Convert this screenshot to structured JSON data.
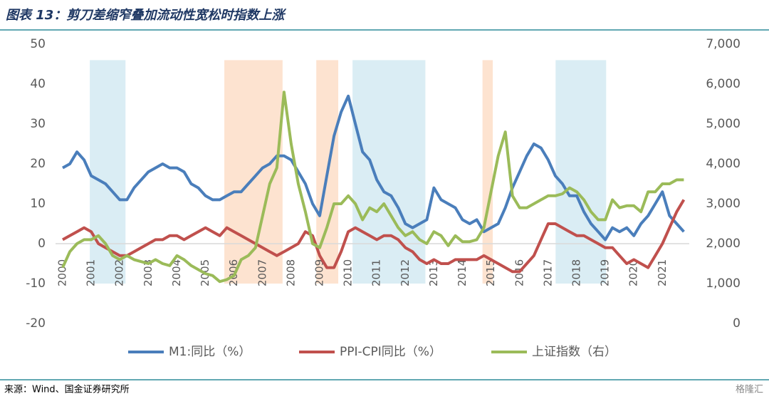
{
  "header": {
    "title": "图表 13：剪刀差缩窄叠加流动性宽松时指数上涨"
  },
  "footer": {
    "source": "来源：Wind、国金证券研究所",
    "watermark": "格隆汇"
  },
  "chart_data": {
    "type": "line",
    "x": [
      2000,
      2000.25,
      2000.5,
      2000.75,
      2001,
      2001.25,
      2001.5,
      2001.75,
      2002,
      2002.25,
      2002.5,
      2002.75,
      2003,
      2003.25,
      2003.5,
      2003.75,
      2004,
      2004.25,
      2004.5,
      2004.75,
      2005,
      2005.25,
      2005.5,
      2005.75,
      2006,
      2006.25,
      2006.5,
      2006.75,
      2007,
      2007.25,
      2007.5,
      2007.75,
      2008,
      2008.25,
      2008.5,
      2008.75,
      2009,
      2009.25,
      2009.5,
      2009.75,
      2010,
      2010.25,
      2010.5,
      2010.75,
      2011,
      2011.25,
      2011.5,
      2011.75,
      2012,
      2012.25,
      2012.5,
      2012.75,
      2013,
      2013.25,
      2013.5,
      2013.75,
      2014,
      2014.25,
      2014.5,
      2014.75,
      2015,
      2015.25,
      2015.5,
      2015.75,
      2016,
      2016.25,
      2016.5,
      2016.75,
      2017,
      2017.25,
      2017.5,
      2017.75,
      2018,
      2018.25,
      2018.5,
      2018.75,
      2019,
      2019.25,
      2019.5,
      2019.75,
      2020,
      2020.25,
      2020.5,
      2020.75,
      2021,
      2021.25,
      2021.5,
      2021.75
    ],
    "series": [
      {
        "name": "M1:同比（%）",
        "color": "#4a7ebb",
        "values": [
          19,
          20,
          23,
          21,
          17,
          16,
          15,
          13,
          11,
          11,
          14,
          16,
          18,
          19,
          20,
          19,
          19,
          18,
          15,
          14,
          12,
          11,
          11,
          12,
          13,
          13,
          15,
          17,
          19,
          20,
          22,
          22,
          21,
          18,
          15,
          10,
          7,
          17,
          27,
          33,
          37,
          30,
          23,
          21,
          16,
          13,
          12,
          9,
          5,
          4,
          5,
          6,
          14,
          11,
          10,
          9,
          6,
          5,
          6,
          3,
          4,
          5,
          9,
          14,
          18,
          22,
          25,
          24,
          21,
          17,
          15,
          12,
          12,
          8,
          5,
          3,
          1,
          4,
          3,
          4,
          2,
          5,
          7,
          10,
          13,
          7,
          5,
          3
        ]
      },
      {
        "name": "PPI-CPI同比（%）",
        "color": "#c0504d",
        "values": [
          1,
          2,
          3,
          4,
          3,
          0,
          -1,
          -2,
          -3,
          -3,
          -2,
          -1,
          0,
          1,
          1,
          2,
          2,
          1,
          2,
          3,
          4,
          3,
          2,
          4,
          3,
          2,
          1,
          0,
          -1,
          -2,
          -3,
          -2,
          -1,
          0,
          3,
          2,
          -3,
          -6,
          -6,
          -2,
          3,
          4,
          3,
          2,
          1,
          2,
          2,
          1,
          -1,
          -2,
          -4,
          -5,
          -4,
          -5,
          -5,
          -4,
          -4,
          -4,
          -4,
          -3,
          -4,
          -5,
          -6,
          -7,
          -7,
          -5,
          -3,
          1,
          5,
          5,
          4,
          3,
          2,
          2,
          1,
          0,
          -1,
          -1,
          -3,
          -5,
          -4,
          -5,
          -6,
          -3,
          0,
          4,
          8,
          11
        ]
      },
      {
        "name": "上证指数（右）",
        "color": "#9bbb59",
        "axis": "y2",
        "values": [
          1400,
          1800,
          2000,
          2100,
          2100,
          2200,
          2000,
          1700,
          1600,
          1700,
          1600,
          1550,
          1500,
          1600,
          1500,
          1450,
          1700,
          1600,
          1450,
          1350,
          1250,
          1200,
          1050,
          1100,
          1200,
          1600,
          1700,
          1900,
          2700,
          3500,
          3900,
          5800,
          4500,
          3500,
          2800,
          2000,
          1900,
          2400,
          3000,
          3000,
          3200,
          3000,
          2600,
          2900,
          2800,
          3000,
          2700,
          2400,
          2200,
          2300,
          2100,
          2000,
          2300,
          2200,
          1950,
          2200,
          2050,
          2050,
          2100,
          2400,
          3300,
          4200,
          4800,
          3200,
          2900,
          2900,
          3000,
          3100,
          3200,
          3200,
          3250,
          3400,
          3300,
          3100,
          2800,
          2600,
          2600,
          3100,
          2900,
          2950,
          2950,
          2800,
          3300,
          3300,
          3500,
          3500,
          3600,
          3600
        ]
      }
    ],
    "bands": [
      {
        "x": [
          2000.95,
          2002.2
        ],
        "y": [
          -10,
          46
        ],
        "color": "#daedf4"
      },
      {
        "x": [
          2005.66,
          2007.7
        ],
        "y": [
          -10,
          46
        ],
        "color": "#fde3d0"
      },
      {
        "x": [
          2008.88,
          2009.65
        ],
        "y": [
          -10,
          46
        ],
        "color": "#fde3d0"
      },
      {
        "x": [
          2010.15,
          2012.7
        ],
        "y": [
          -10,
          46
        ],
        "color": "#daedf4"
      },
      {
        "x": [
          2014.7,
          2015.06
        ],
        "y": [
          -10,
          46
        ],
        "color": "#fde3d0"
      },
      {
        "x": [
          2017.26,
          2019.03
        ],
        "y": [
          -10,
          46
        ],
        "color": "#daedf4"
      }
    ],
    "xlim": [
      1999.75,
      2021.94
    ],
    "xticks": [
      2000,
      2001,
      2002,
      2003,
      2004,
      2005,
      2006,
      2007,
      2008,
      2009,
      2010,
      2011,
      2012,
      2013,
      2014,
      2015,
      2016,
      2017,
      2018,
      2019,
      2020,
      2021
    ],
    "ylim": [
      -20,
      50
    ],
    "yticks": [
      -20,
      -10,
      0,
      10,
      20,
      30,
      40,
      50
    ],
    "y2lim": [
      0,
      7000
    ],
    "y2ticks": [
      0,
      {
        "value": 1000,
        "label": "1,000"
      },
      {
        "value": 2000,
        "label": "2,000"
      },
      {
        "value": 3000,
        "label": "3,000"
      },
      {
        "value": 4000,
        "label": "4,000"
      },
      {
        "value": 5000,
        "label": "5,000"
      },
      {
        "value": 6000,
        "label": "6,000"
      },
      {
        "value": 7000,
        "label": "7,000"
      }
    ]
  }
}
